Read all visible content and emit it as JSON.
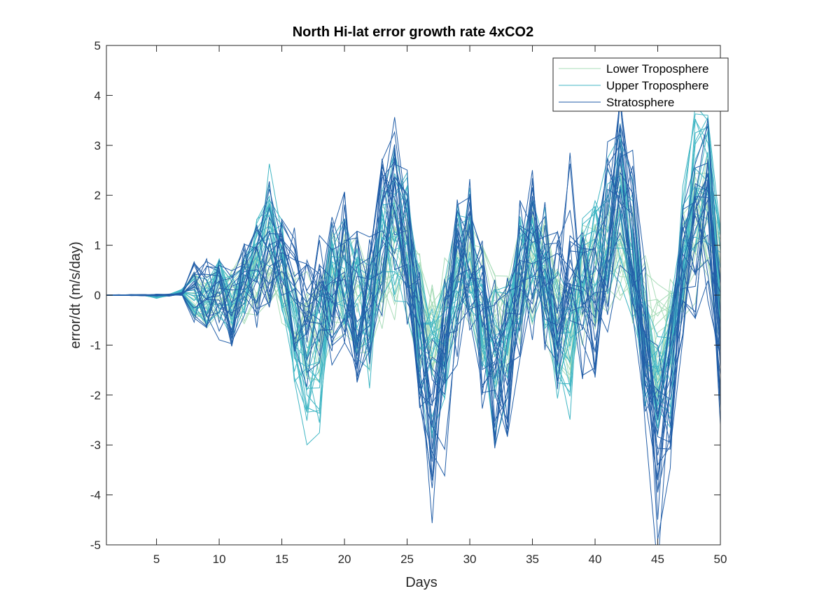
{
  "chart_data": {
    "type": "line",
    "title": "North Hi-lat error growth rate 4xCO2",
    "xlabel": "Days",
    "ylabel": "error/dt (m/s/day)",
    "xlim": [
      1,
      50
    ],
    "ylim": [
      -5,
      5
    ],
    "xticks": [
      5,
      10,
      15,
      20,
      25,
      30,
      35,
      40,
      45,
      50
    ],
    "yticks": [
      -5,
      -4,
      -3,
      -2,
      -1,
      0,
      1,
      2,
      3,
      4,
      5
    ],
    "grid": false,
    "legend_position": "top-right",
    "x": [
      1,
      2,
      3,
      4,
      5,
      6,
      7,
      8,
      9,
      10,
      11,
      12,
      13,
      14,
      15,
      16,
      17,
      18,
      19,
      20,
      21,
      22,
      23,
      24,
      25,
      26,
      27,
      28,
      29,
      30,
      31,
      32,
      33,
      34,
      35,
      36,
      37,
      38,
      39,
      40,
      41,
      42,
      43,
      44,
      45,
      46,
      47,
      48,
      49,
      50
    ],
    "series": [
      {
        "name": "Lower Troposphere",
        "color": "#a8dcb8",
        "member_count": 20,
        "values": [
          0,
          0,
          0,
          0,
          -0.03,
          0,
          0.05,
          0,
          -0.1,
          0.1,
          -0.1,
          0.2,
          0.4,
          0.6,
          0.3,
          -0.4,
          -0.8,
          -0.6,
          0.2,
          0.3,
          0,
          -0.3,
          0.5,
          0.8,
          0.6,
          -0.3,
          -0.9,
          -0.5,
          0.4,
          0.5,
          -0.2,
          -0.8,
          -0.7,
          0.2,
          0.6,
          0.3,
          -0.4,
          -0.6,
          0.2,
          0.5,
          0.8,
          1.2,
          0.6,
          -0.5,
          -1.0,
          -0.6,
          0.5,
          1.3,
          1.6,
          0.2
        ]
      },
      {
        "name": "Upper Troposphere",
        "color": "#41b6c4",
        "member_count": 20,
        "values": [
          0,
          0,
          0,
          0,
          -0.05,
          0,
          0.08,
          0.05,
          -0.15,
          0.15,
          -0.2,
          0.3,
          0.8,
          1.7,
          0.6,
          -0.8,
          -1.5,
          -1.3,
          0.3,
          0.5,
          -0.2,
          -0.6,
          0.9,
          1.6,
          1.1,
          -0.6,
          -1.6,
          -0.9,
          0.7,
          0.9,
          -0.4,
          -1.4,
          -1.2,
          0.4,
          1.0,
          0.5,
          -0.7,
          -1.1,
          0.4,
          0.9,
          1.4,
          2.1,
          1.0,
          -0.9,
          -1.8,
          -1.1,
          0.9,
          2.3,
          2.8,
          0.4
        ]
      },
      {
        "name": "Stratosphere",
        "color": "#225ea8",
        "member_count": 20,
        "values": [
          0,
          0,
          0,
          0,
          0,
          0,
          0.02,
          0.05,
          0.05,
          -0.1,
          -0.2,
          0.1,
          0.4,
          1.0,
          0.5,
          0.1,
          -0.5,
          -0.2,
          0.1,
          0.4,
          -0.3,
          -0.4,
          1.3,
          2.1,
          1.3,
          -0.9,
          -2.6,
          -1.6,
          0.3,
          0.8,
          -0.7,
          -1.6,
          -1.4,
          0.3,
          0.9,
          0.4,
          -0.4,
          1.3,
          -0.5,
          -0.4,
          1.2,
          3.0,
          1.2,
          -1.1,
          -3.2,
          -1.7,
          0.3,
          1.1,
          1.6,
          -1.0
        ]
      }
    ]
  }
}
